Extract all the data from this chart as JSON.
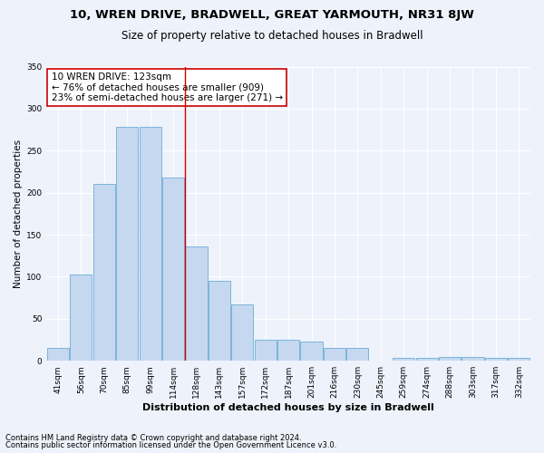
{
  "title1": "10, WREN DRIVE, BRADWELL, GREAT YARMOUTH, NR31 8JW",
  "title2": "Size of property relative to detached houses in Bradwell",
  "xlabel": "Distribution of detached houses by size in Bradwell",
  "ylabel": "Number of detached properties",
  "categories": [
    "41sqm",
    "56sqm",
    "70sqm",
    "85sqm",
    "99sqm",
    "114sqm",
    "128sqm",
    "143sqm",
    "157sqm",
    "172sqm",
    "187sqm",
    "201sqm",
    "216sqm",
    "230sqm",
    "245sqm",
    "259sqm",
    "274sqm",
    "288sqm",
    "303sqm",
    "317sqm",
    "332sqm"
  ],
  "bar_values": [
    15,
    103,
    210,
    278,
    278,
    218,
    136,
    95,
    67,
    25,
    25,
    23,
    15,
    15,
    0,
    3,
    3,
    5,
    5,
    3,
    3
  ],
  "bar_color": "#c5d8f0",
  "bar_edgecolor": "#6baed6",
  "red_line_x": 5.5,
  "annotation_text": "10 WREN DRIVE: 123sqm\n← 76% of detached houses are smaller (909)\n23% of semi-detached houses are larger (271) →",
  "footnote1": "Contains HM Land Registry data © Crown copyright and database right 2024.",
  "footnote2": "Contains public sector information licensed under the Open Government Licence v3.0.",
  "ylim": [
    0,
    350
  ],
  "background_color": "#eef2fb",
  "plot_bg_color": "#eef2fb",
  "grid_color": "#ffffff",
  "annotation_box_color": "#ffffff",
  "annotation_box_edgecolor": "#cc0000",
  "red_line_color": "#cc0000",
  "title1_fontsize": 9.5,
  "title2_fontsize": 8.5,
  "xlabel_fontsize": 8,
  "ylabel_fontsize": 7.5,
  "tick_fontsize": 6.5,
  "annotation_fontsize": 7.5,
  "footnote_fontsize": 6
}
